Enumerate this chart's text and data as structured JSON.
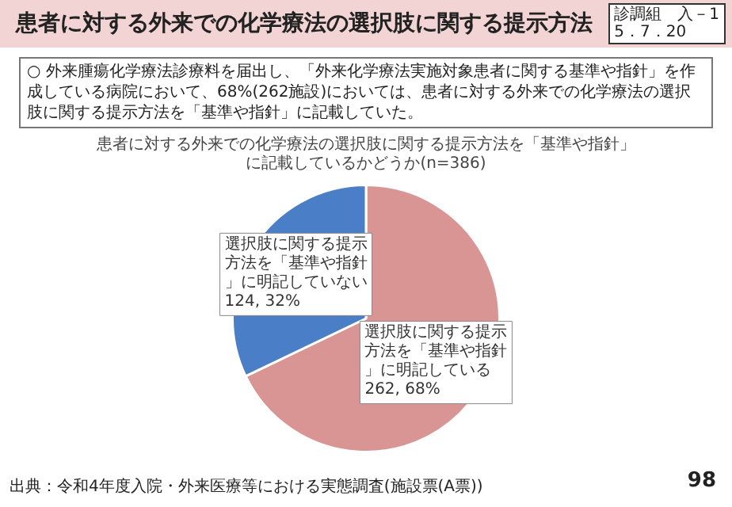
{
  "chart_data": {
    "type": "pie",
    "title": "患者に対する外来での化学療法の選択肢に関する提示方法",
    "subtitle": "患者に対する外来での化学療法の選択肢に関する提示方法を「基準や指針」に記載しているかどうか(n=386)",
    "categories": [
      "選択肢に関する提示方法を「基準や指針」に明記している",
      "選択肢に関する提示方法を「基準や指針」に明記していない"
    ],
    "values": [
      262,
      124
    ],
    "colors": [
      "#d99594",
      "#4a7fc8"
    ],
    "value_labels": [
      "262, 68%",
      "124, 32%"
    ],
    "legend": false,
    "annotations": [
      "診調組　入－1",
      "5．7．20",
      "○ 外来腫瘍化学療法診療料を届出し、「外来化学療法実施対象患者に関する基準や指針」を作成している病院において、68%(262施設)においては、患者に対する外来での化学療法の選択肢に関する提示方法を「基準や指針」に記載していた。",
      "出典：令和4年度入院・外来医療等における実態調査(施設票(A票))",
      "98"
    ]
  }
}
